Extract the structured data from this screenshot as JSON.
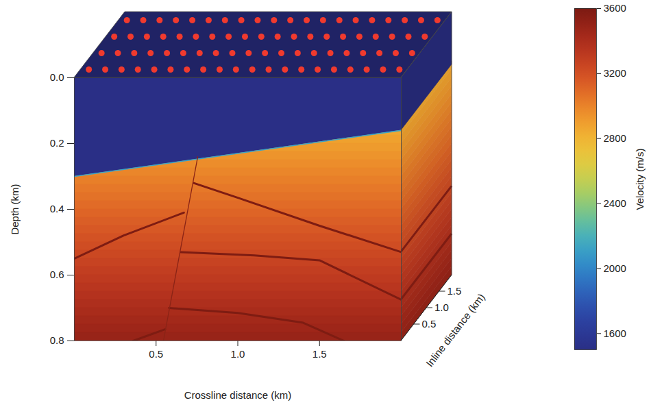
{
  "chart_data": {
    "type": "velocity_model_3d",
    "xlabel": "Crossline distance (km)",
    "ylabel": "Depth (km)",
    "zlabel": "Inline distance (km)",
    "xlim": [
      0,
      2
    ],
    "xticks": [
      0.5,
      {
        "value": 1,
        "label": "1.0"
      },
      1.5
    ],
    "ylim": [
      0,
      0.8
    ],
    "yticks": [
      {
        "value": 0,
        "label": "0.0"
      },
      0.2,
      0.4,
      0.6,
      0.8
    ],
    "zlim": [
      0,
      2
    ],
    "zticks": [
      0.5,
      {
        "value": 1,
        "label": "1.0"
      },
      1.5
    ],
    "colorbar": {
      "label": "Velocity (m/s)",
      "range": [
        1500,
        3600
      ],
      "ticks": [
        1600,
        2000,
        2400,
        2800,
        3200,
        3600
      ]
    },
    "water_velocity": 1500,
    "seafloor": {
      "crossline": [
        0,
        2
      ],
      "depth": [
        0.3,
        0.16
      ]
    },
    "velocity_profile": {
      "depth_edges": [
        0.15,
        0.175,
        0.2,
        0.225,
        0.25,
        0.275,
        0.3,
        0.325,
        0.35,
        0.375,
        0.4,
        0.425,
        0.45,
        0.475,
        0.5,
        0.525,
        0.55,
        0.575,
        0.6,
        0.625,
        0.65,
        0.675,
        0.7,
        0.725,
        0.75,
        0.775,
        0.8
      ],
      "velocity": [
        2860,
        2885,
        2910,
        2935,
        2960,
        2985,
        3010,
        3035,
        3060,
        3085,
        3110,
        3135,
        3160,
        3185,
        3210,
        3235,
        3260,
        3285,
        3310,
        3335,
        3360,
        3385,
        3410,
        3435,
        3460,
        3485
      ]
    },
    "fault": {
      "crossline": [
        0.755,
        0.545
      ],
      "depth": [
        0.24,
        0.8
      ]
    },
    "reflectors": [
      {
        "crossline": [
          0,
          0.3,
          0.67
        ],
        "depth": [
          0.55,
          0.48,
          0.41
        ],
        "color": "#7e1c12"
      },
      {
        "crossline": [
          0.36,
          0.555
        ],
        "depth": [
          0.8,
          0.765
        ],
        "color": "#7e1c12"
      },
      {
        "crossline": [
          0.73,
          1.0,
          1.5,
          2.0
        ],
        "depth": [
          0.32,
          0.365,
          0.45,
          0.53
        ],
        "color": "#7e1c12"
      },
      {
        "crossline": [
          0.65,
          1.1,
          1.5,
          2.0
        ],
        "depth": [
          0.53,
          0.54,
          0.555,
          0.675
        ],
        "color": "#7e1c12"
      },
      {
        "crossline": [
          0.58,
          1.0,
          1.4,
          1.65
        ],
        "depth": [
          0.7,
          0.715,
          0.745,
          0.8
        ],
        "color": "#7e1c12"
      }
    ],
    "receivers": {
      "crossline": [
        0.05,
        0.15,
        0.25,
        0.35,
        0.45,
        0.55,
        0.65,
        0.75,
        0.85,
        0.95,
        1.05,
        1.15,
        1.25,
        1.35,
        1.45,
        1.55,
        1.65,
        1.75,
        1.85,
        1.95
      ],
      "inline": [
        0.25,
        0.75,
        1.25,
        1.75
      ],
      "color": "#f03a2e"
    }
  }
}
